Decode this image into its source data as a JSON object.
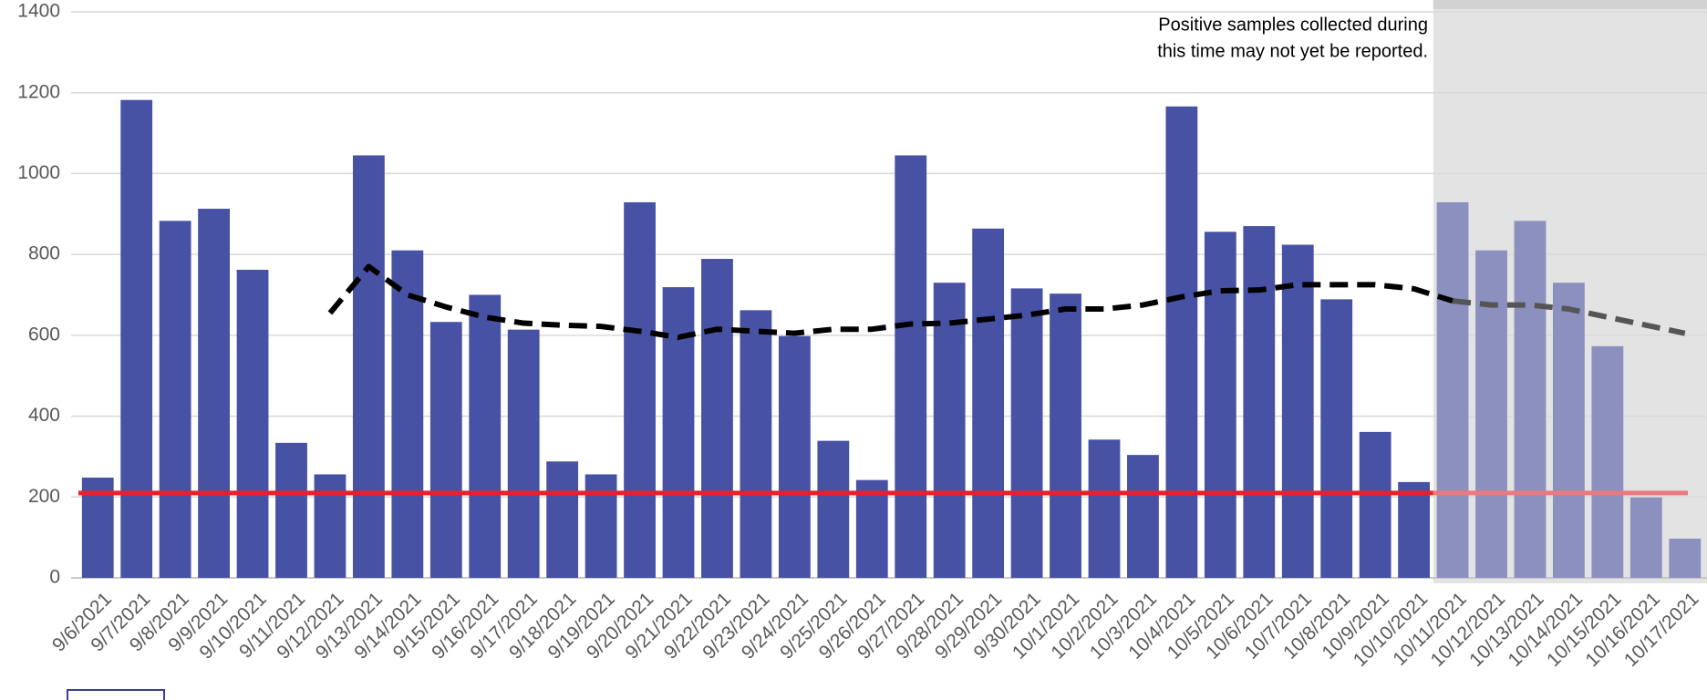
{
  "chart_data": {
    "type": "bar",
    "categories": [
      "9/6/2021",
      "9/7/2021",
      "9/8/2021",
      "9/9/2021",
      "9/10/2021",
      "9/11/2021",
      "9/12/2021",
      "9/13/2021",
      "9/14/2021",
      "9/15/2021",
      "9/16/2021",
      "9/17/2021",
      "9/18/2021",
      "9/19/2021",
      "9/20/2021",
      "9/21/2021",
      "9/22/2021",
      "9/23/2021",
      "9/24/2021",
      "9/25/2021",
      "9/26/2021",
      "9/27/2021",
      "9/28/2021",
      "9/29/2021",
      "9/30/2021",
      "10/1/2021",
      "10/2/2021",
      "10/3/2021",
      "10/4/2021",
      "10/5/2021",
      "10/6/2021",
      "10/7/2021",
      "10/8/2021",
      "10/9/2021",
      "10/10/2021",
      "10/11/2021",
      "10/12/2021",
      "10/13/2021",
      "10/14/2021",
      "10/15/2021",
      "10/16/2021",
      "10/17/2021"
    ],
    "series": [
      {
        "type": "bar",
        "color": "#4752a5",
        "shaded_color": "#8c90bf",
        "values": [
          248,
          1182,
          883,
          913,
          762,
          334,
          256,
          1045,
          810,
          633,
          700,
          614,
          288,
          256,
          929,
          719,
          789,
          662,
          598,
          339,
          242,
          1045,
          730,
          864,
          716,
          703,
          342,
          304,
          1166,
          856,
          870,
          824,
          689,
          361,
          237,
          929,
          810,
          883,
          730,
          573,
          199,
          97
        ]
      },
      {
        "type": "line",
        "color": "#000000",
        "shaded_color": "#555555",
        "dashed": true,
        "values": [
          null,
          null,
          null,
          null,
          null,
          null,
          655,
          770,
          700,
          670,
          645,
          630,
          625,
          622,
          610,
          595,
          615,
          610,
          605,
          615,
          615,
          628,
          630,
          640,
          650,
          665,
          665,
          675,
          695,
          710,
          712,
          725,
          725,
          725,
          715,
          685,
          675,
          675,
          665,
          645,
          625,
          605
        ]
      }
    ],
    "threshold": {
      "value": 210,
      "color": "#e8202a",
      "shaded_color": "#e87a80"
    },
    "shaded_from": "10/11/2021",
    "annotation": [
      "Positive samples collected during",
      "this time may not yet be reported."
    ],
    "ylim": [
      0,
      1400
    ],
    "yticks": [
      0,
      200,
      400,
      600,
      800,
      1000,
      1200,
      1400
    ],
    "grid": true
  }
}
